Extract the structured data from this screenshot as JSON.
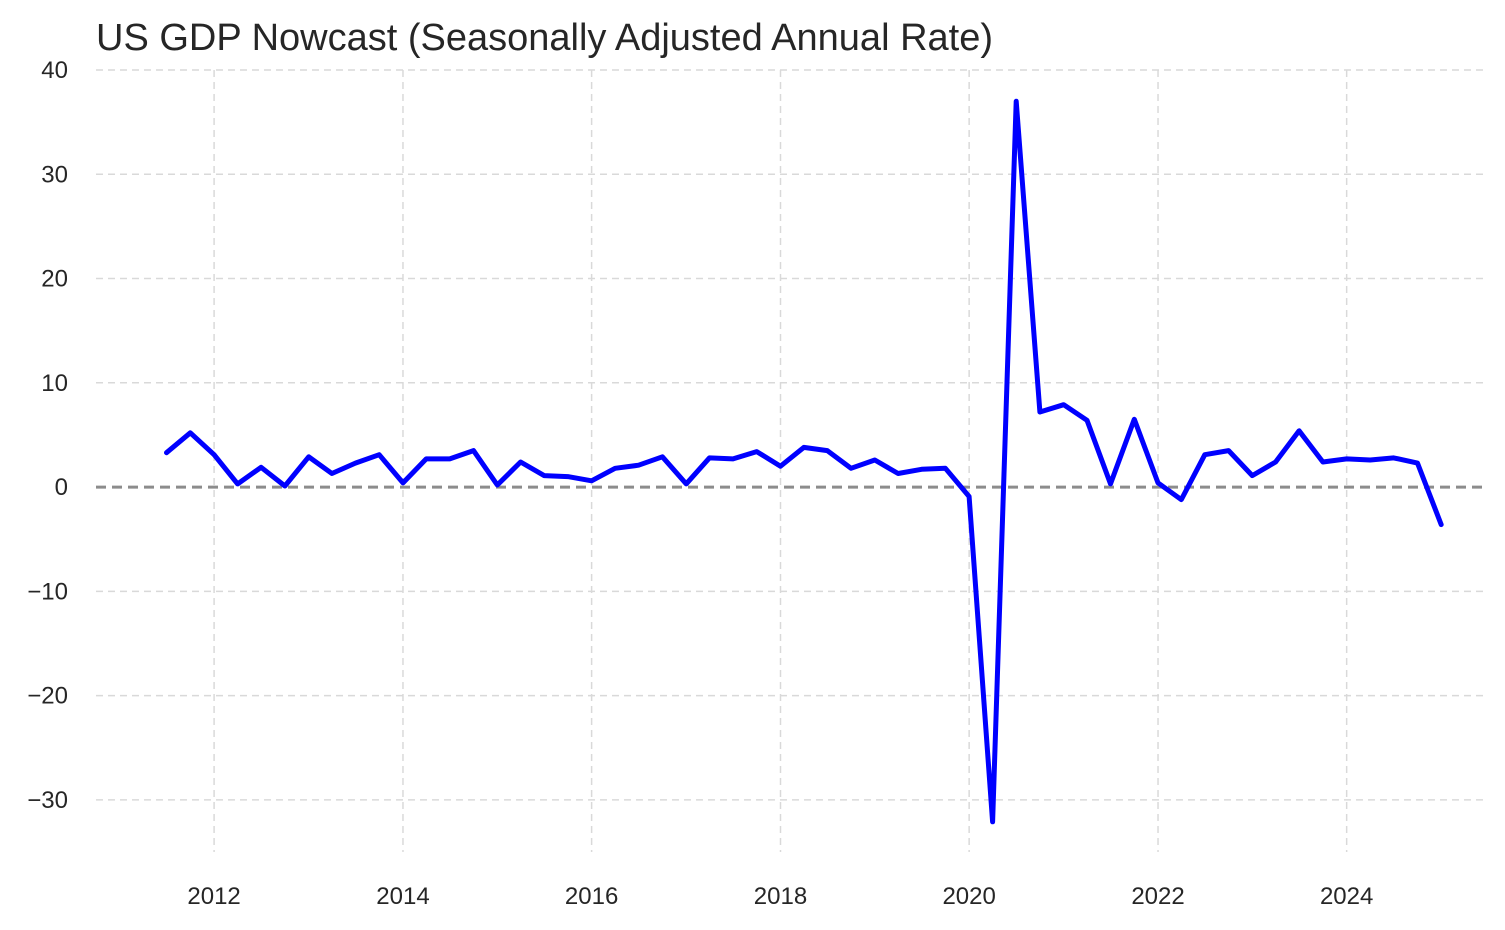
{
  "chart_data": {
    "type": "line",
    "title": "US GDP Nowcast (Seasonally Adjusted Annual Rate)",
    "xlabel": "",
    "ylabel": "",
    "xlim": [
      "2010-10-01",
      "2025-07-01"
    ],
    "ylim": [
      -35,
      40
    ],
    "x_ticks": [
      "2012",
      "2014",
      "2016",
      "2018",
      "2020",
      "2022",
      "2024"
    ],
    "x_tick_dates": [
      "2012-01-01",
      "2014-01-01",
      "2016-01-01",
      "2018-01-01",
      "2020-01-01",
      "2022-01-01",
      "2024-01-01"
    ],
    "y_ticks": [
      "40",
      "30",
      "20",
      "10",
      "0",
      "−10",
      "−20",
      "−30"
    ],
    "y_tick_values": [
      40,
      30,
      20,
      10,
      0,
      -10,
      -20,
      -30
    ],
    "grid": true,
    "line_color": "#0000ff",
    "zero_line_color": "#8c8c8c",
    "grid_color": "#d9d9d9",
    "reference_line": 0,
    "series": [
      {
        "x": [
          "2011-07-01",
          "2011-10-01",
          "2012-01-01",
          "2012-04-01",
          "2012-07-01",
          "2012-10-01",
          "2013-01-01",
          "2013-04-01",
          "2013-07-01",
          "2013-10-01",
          "2014-01-01",
          "2014-04-01",
          "2014-07-01",
          "2014-10-01",
          "2015-01-01",
          "2015-04-01",
          "2015-07-01",
          "2015-10-01",
          "2016-01-01",
          "2016-04-01",
          "2016-07-01",
          "2016-10-01",
          "2017-01-01",
          "2017-04-01",
          "2017-07-01",
          "2017-10-01",
          "2018-01-01",
          "2018-04-01",
          "2018-07-01",
          "2018-10-01",
          "2019-01-01",
          "2019-04-01",
          "2019-07-01",
          "2019-10-01",
          "2020-01-01",
          "2020-04-01",
          "2020-07-01",
          "2020-10-01",
          "2021-01-01",
          "2021-04-01",
          "2021-07-01",
          "2021-10-01",
          "2022-01-01",
          "2022-04-01",
          "2022-07-01",
          "2022-10-01",
          "2023-01-01",
          "2023-04-01",
          "2023-07-01",
          "2023-10-01",
          "2024-01-01",
          "2024-04-01",
          "2024-07-01",
          "2024-10-01",
          "2025-01-01"
        ],
        "y": [
          3.3,
          5.2,
          3.1,
          0.3,
          1.9,
          0.1,
          2.9,
          1.3,
          2.3,
          3.1,
          0.4,
          2.7,
          2.7,
          3.5,
          0.2,
          2.4,
          1.1,
          1.0,
          0.6,
          1.8,
          2.1,
          2.9,
          0.3,
          2.8,
          2.7,
          3.4,
          2.0,
          3.8,
          3.5,
          1.8,
          2.6,
          1.3,
          1.7,
          1.8,
          -0.9,
          -32.1,
          37.0,
          7.2,
          7.9,
          6.4,
          0.3,
          6.5,
          0.4,
          -1.2,
          3.1,
          3.5,
          1.1,
          2.4,
          5.4,
          2.4,
          2.7,
          2.6,
          2.8,
          2.3,
          -3.6
        ]
      }
    ]
  }
}
